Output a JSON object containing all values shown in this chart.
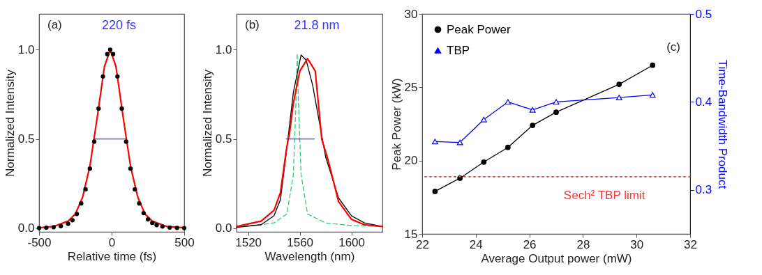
{
  "chart_data": [
    {
      "type": "line",
      "xlabel": "Relative time (fs)",
      "ylabel": "Normalized Intensity",
      "xlim": [
        -500,
        500
      ],
      "ylim": [
        -0.02,
        1.2
      ],
      "xticks": [
        -500,
        0,
        500
      ],
      "yticks": [
        {
          "value": 0,
          "label": "0.0"
        },
        {
          "value": 0.5,
          "label": "0.5"
        },
        {
          "value": 1,
          "label": "1.0"
        }
      ],
      "annotations": [
        "(a)",
        "220 fs"
      ],
      "series": [
        {
          "color": "#ff0000",
          "x": [
            -500,
            -400,
            -300,
            -250,
            -200,
            -150,
            -100,
            -50,
            -10,
            30,
            80,
            130,
            180,
            230,
            280,
            380,
            500
          ],
          "values": [
            0.003,
            0.01,
            0.04,
            0.08,
            0.174,
            0.347,
            0.618,
            0.904,
            1,
            0.904,
            0.618,
            0.347,
            0.174,
            0.08,
            0.04,
            0.01,
            0.003
          ]
        },
        {
          "type": "scatter",
          "marker": "circle",
          "color": "#000000",
          "x": [
            -500,
            -450,
            -400,
            -350,
            -300,
            -270,
            -240,
            -210,
            -180,
            -150,
            -120,
            -90,
            -60,
            -30,
            -10,
            10,
            40,
            70,
            100,
            130,
            160,
            190,
            220,
            250,
            280,
            310,
            350,
            400,
            450,
            500
          ],
          "values": [
            0.001,
            0.003,
            0.006,
            0.012,
            0.025,
            0.045,
            0.08,
            0.139,
            0.218,
            0.334,
            0.485,
            0.67,
            0.85,
            0.975,
            1,
            0.975,
            0.85,
            0.67,
            0.485,
            0.334,
            0.218,
            0.139,
            0.085,
            0.05,
            0.03,
            0.018,
            0.01,
            0.004,
            0.002,
            0.001
          ]
        },
        {
          "color": "#3333ff",
          "x": [
            -120,
            95
          ],
          "values": [
            0.5,
            0.5
          ]
        }
      ]
    },
    {
      "type": "line",
      "xlabel": "Wavelength (nm)",
      "ylabel": "Normalized Intensity",
      "xlim": [
        1511,
        1624
      ],
      "ylim": [
        -0.02,
        1.2
      ],
      "xticks": [
        1520,
        1560,
        1600
      ],
      "yticks": [
        {
          "value": 0,
          "label": "0.0"
        },
        {
          "value": 0.5,
          "label": "0.5"
        },
        {
          "value": 1,
          "label": "1.0"
        }
      ],
      "annotations": [
        "(b)",
        "21.8 nm"
      ],
      "series": [
        {
          "color": "#33cc77",
          "line_style": "dashed",
          "x": [
            1511,
            1530,
            1540,
            1550,
            1555,
            1557,
            1558,
            1559,
            1561,
            1566,
            1580,
            1600,
            1624
          ],
          "values": [
            0.01,
            0.02,
            0.03,
            0.08,
            0.3,
            0.7,
            0.98,
            0.7,
            0.3,
            0.08,
            0.03,
            0.015,
            0.01
          ]
        },
        {
          "color": "#000000",
          "x": [
            1511,
            1530,
            1540,
            1545,
            1550,
            1555,
            1561,
            1565,
            1570,
            1575,
            1580,
            1590,
            1600,
            1610,
            1624
          ],
          "values": [
            0.005,
            0.02,
            0.07,
            0.16,
            0.45,
            0.76,
            0.97,
            0.94,
            0.8,
            0.6,
            0.4,
            0.17,
            0.07,
            0.03,
            0.01
          ]
        },
        {
          "color": "#ff0000",
          "x": [
            1511,
            1530,
            1540,
            1545,
            1550,
            1552,
            1555,
            1560,
            1566,
            1572,
            1577,
            1582,
            1590,
            1600,
            1610,
            1624
          ],
          "values": [
            0.01,
            0.04,
            0.1,
            0.2,
            0.46,
            0.53,
            0.7,
            0.88,
            0.95,
            0.88,
            0.5,
            0.38,
            0.15,
            0.05,
            0.02,
            0.01
          ]
        },
        {
          "color": "#3333ff",
          "x": [
            1549.5,
            1571.3
          ],
          "values": [
            0.5,
            0.5
          ]
        }
      ]
    },
    {
      "type": "line",
      "xlabel": "Average Output power (mW)",
      "ylabel": "Peak Power (kW)",
      "y2label": "Time-Bandwidth Product",
      "xlim": [
        22,
        32
      ],
      "ylim": [
        15,
        30
      ],
      "y2lim": [
        0.25,
        0.5
      ],
      "xticks": [
        22,
        24,
        26,
        28,
        30,
        32
      ],
      "yticks": [
        15,
        20,
        25,
        30
      ],
      "y2ticks": [
        0.3,
        0.4,
        0.5
      ],
      "legend": "top left",
      "annotations": [
        "(c)"
      ],
      "ref_lines": [
        {
          "axis": "y2",
          "value": 0.315,
          "label": "Sech² TBP limit",
          "color": "#ff3333",
          "line_style": "dotted"
        }
      ],
      "series": [
        {
          "name": "Peak Power",
          "color": "#000000",
          "marker": "circle",
          "x": [
            22.48,
            23.41,
            24.3,
            25.2,
            26.12,
            27.0,
            29.35,
            30.6
          ],
          "values": [
            17.9,
            18.8,
            19.9,
            20.9,
            22.4,
            23.3,
            25.2,
            26.5
          ]
        },
        {
          "name": "TBP",
          "color": "#0000ff",
          "marker": "triangle",
          "axis": "y2",
          "x": [
            22.48,
            23.41,
            24.3,
            25.2,
            26.12,
            27.0,
            29.35,
            30.6
          ],
          "values": [
            0.355,
            0.354,
            0.38,
            0.4,
            0.391,
            0.4,
            0.405,
            0.408
          ]
        }
      ]
    }
  ]
}
